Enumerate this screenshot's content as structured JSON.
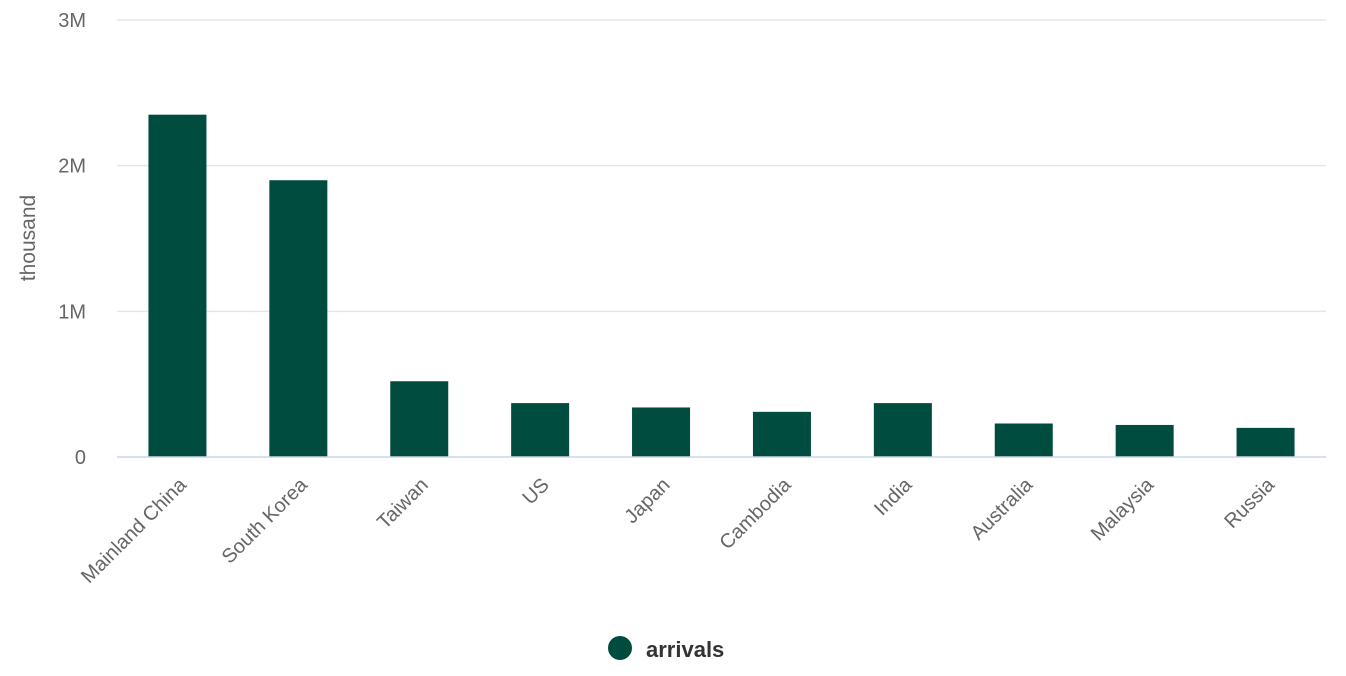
{
  "chart_data": {
    "type": "bar",
    "categories": [
      "Mainland China",
      "South Korea",
      "Taiwan",
      "US",
      "Japan",
      "Cambodia",
      "India",
      "Australia",
      "Malaysia",
      "Russia"
    ],
    "series": [
      {
        "name": "arrivals",
        "values": [
          2350000,
          1900000,
          520000,
          370000,
          340000,
          310000,
          370000,
          230000,
          220000,
          200000
        ],
        "color": "#004c3f"
      }
    ],
    "ylabel": "thousand",
    "ylim": [
      0,
      3000000
    ],
    "yticks": [
      0,
      1000000,
      2000000,
      3000000
    ],
    "ytick_labels": [
      "0",
      "1M",
      "2M",
      "3M"
    ],
    "grid": true,
    "legend_position": "bottom-center"
  }
}
